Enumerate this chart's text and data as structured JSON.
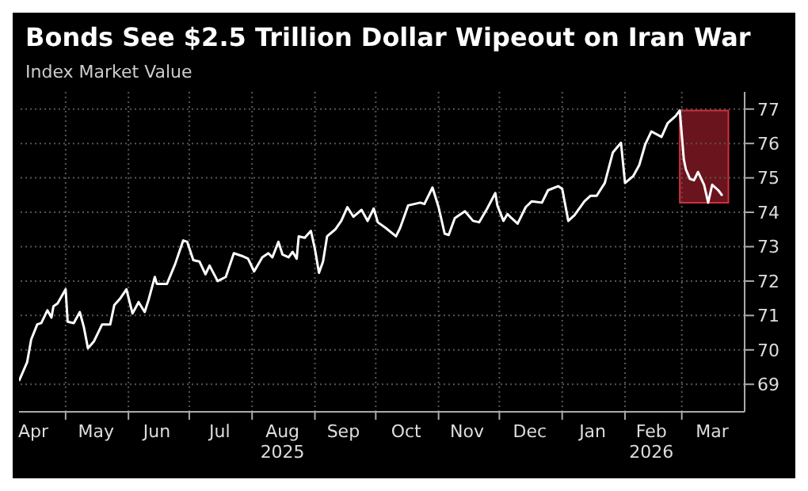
{
  "chart_data": {
    "type": "line",
    "title": "Bonds See $2.5 Trillion Dollar Wipeout on Iran War",
    "subtitle": "Index Market Value",
    "x": [
      "2025-04-08",
      "2025-04-12",
      "2025-04-14",
      "2025-04-17",
      "2025-04-19",
      "2025-04-22",
      "2025-04-24",
      "2025-04-25",
      "2025-04-27",
      "2025-05-01",
      "2025-05-02",
      "2025-05-05",
      "2025-05-08",
      "2025-05-10",
      "2025-05-12",
      "2025-05-15",
      "2025-05-19",
      "2025-05-23",
      "2025-05-25",
      "2025-05-28",
      "2025-05-31",
      "2025-06-03",
      "2025-06-06",
      "2025-06-09",
      "2025-06-11",
      "2025-06-14",
      "2025-06-15",
      "2025-06-20",
      "2025-06-24",
      "2025-06-28",
      "2025-06-30",
      "2025-07-03",
      "2025-07-06",
      "2025-07-09",
      "2025-07-11",
      "2025-07-15",
      "2025-07-19",
      "2025-07-23",
      "2025-07-27",
      "2025-07-30",
      "2025-08-02",
      "2025-08-06",
      "2025-08-09",
      "2025-08-11",
      "2025-08-14",
      "2025-08-16",
      "2025-08-19",
      "2025-08-21",
      "2025-08-23",
      "2025-08-24",
      "2025-08-27",
      "2025-08-30",
      "2025-09-01",
      "2025-09-03",
      "2025-09-05",
      "2025-09-07",
      "2025-09-11",
      "2025-09-14",
      "2025-09-17",
      "2025-09-20",
      "2025-09-24",
      "2025-09-27",
      "2025-09-30",
      "2025-10-02",
      "2025-10-06",
      "2025-10-11",
      "2025-10-13",
      "2025-10-17",
      "2025-10-23",
      "2025-10-25",
      "2025-10-29",
      "2025-11-01",
      "2025-11-04",
      "2025-11-06",
      "2025-11-09",
      "2025-11-14",
      "2025-11-18",
      "2025-11-21",
      "2025-11-25",
      "2025-11-29",
      "2025-11-30",
      "2025-12-03",
      "2025-12-05",
      "2025-12-07",
      "2025-12-10",
      "2025-12-14",
      "2025-12-17",
      "2025-12-22",
      "2025-12-25",
      "2025-12-30",
      "2026-01-01",
      "2026-01-04",
      "2026-01-07",
      "2026-01-12",
      "2026-01-15",
      "2026-01-18",
      "2026-01-22",
      "2026-01-26",
      "2026-01-30",
      "2026-02-01",
      "2026-02-05",
      "2026-02-08",
      "2026-02-11",
      "2026-02-14",
      "2026-02-19",
      "2026-02-22",
      "2026-02-26",
      "2026-02-28",
      "2026-03-02",
      "2026-03-03",
      "2026-03-05",
      "2026-03-07",
      "2026-03-09",
      "2026-03-12",
      "2026-03-14",
      "2026-03-16",
      "2026-03-19",
      "2026-03-21"
    ],
    "series": [
      {
        "color": "#ffffff",
        "values": [
          69.1,
          69.64,
          70.3,
          70.74,
          70.78,
          71.15,
          70.94,
          71.27,
          71.35,
          71.76,
          70.82,
          70.78,
          71.1,
          70.66,
          70.05,
          70.25,
          70.74,
          70.74,
          71.3,
          71.5,
          71.76,
          71.06,
          71.39,
          71.1,
          71.47,
          72.12,
          71.92,
          71.92,
          72.49,
          73.18,
          73.14,
          72.61,
          72.57,
          72.2,
          72.45,
          72.0,
          72.12,
          72.81,
          72.73,
          72.65,
          72.28,
          72.69,
          72.81,
          72.69,
          73.14,
          72.77,
          72.69,
          72.85,
          72.65,
          73.3,
          73.26,
          73.46,
          72.93,
          72.24,
          72.57,
          73.3,
          73.5,
          73.75,
          74.15,
          73.87,
          74.07,
          73.75,
          74.11,
          73.71,
          73.54,
          73.3,
          73.54,
          74.2,
          74.28,
          74.24,
          74.72,
          74.15,
          73.38,
          73.34,
          73.83,
          74.03,
          73.75,
          73.71,
          74.11,
          74.56,
          74.2,
          73.75,
          73.95,
          73.83,
          73.67,
          74.15,
          74.32,
          74.28,
          74.64,
          74.76,
          74.68,
          73.75,
          73.91,
          74.32,
          74.48,
          74.48,
          74.85,
          75.74,
          76.02,
          74.85,
          75.05,
          75.37,
          75.98,
          76.35,
          76.19,
          76.59,
          76.8,
          76.96,
          75.54,
          75.25,
          74.97,
          74.93,
          75.17,
          74.8,
          74.28,
          74.8,
          74.64,
          74.48
        ]
      }
    ],
    "xlim": [
      "2025-04-08",
      "2026-04-01"
    ],
    "xticks": [
      {
        "value": "2025-04-15",
        "label": "Apr"
      },
      {
        "value": "2025-05-01",
        "label": null
      },
      {
        "value": "2025-05-16",
        "label": "May"
      },
      {
        "value": "2025-06-01",
        "label": null
      },
      {
        "value": "2025-06-15",
        "label": "Jun"
      },
      {
        "value": "2025-07-01",
        "label": null
      },
      {
        "value": "2025-07-16",
        "label": "Jul"
      },
      {
        "value": "2025-08-01",
        "label": null
      },
      {
        "value": "2025-08-16",
        "label": "Aug\n2025"
      },
      {
        "value": "2025-09-01",
        "label": null
      },
      {
        "value": "2025-09-15",
        "label": "Sep"
      },
      {
        "value": "2025-10-01",
        "label": null
      },
      {
        "value": "2025-10-16",
        "label": "Oct"
      },
      {
        "value": "2025-11-01",
        "label": null
      },
      {
        "value": "2025-11-15",
        "label": "Nov"
      },
      {
        "value": "2025-12-01",
        "label": null
      },
      {
        "value": "2025-12-16",
        "label": "Dec"
      },
      {
        "value": "2026-01-01",
        "label": null
      },
      {
        "value": "2026-01-16",
        "label": "Jan"
      },
      {
        "value": "2026-02-01",
        "label": null
      },
      {
        "value": "2026-02-14",
        "label": "Feb\n2026"
      },
      {
        "value": "2026-03-01",
        "label": null
      },
      {
        "value": "2026-03-16",
        "label": "Mar"
      }
    ],
    "ylim": [
      68.2,
      77.5
    ],
    "yticks": [
      69,
      70,
      71,
      72,
      73,
      74,
      75,
      76,
      77
    ],
    "bands": [
      {
        "axis": "x",
        "from": "2026-02-28",
        "to": "2026-03-24",
        "color": "#8e1b27"
      }
    ],
    "grid": true,
    "line_style": "solid",
    "marker": "none"
  }
}
